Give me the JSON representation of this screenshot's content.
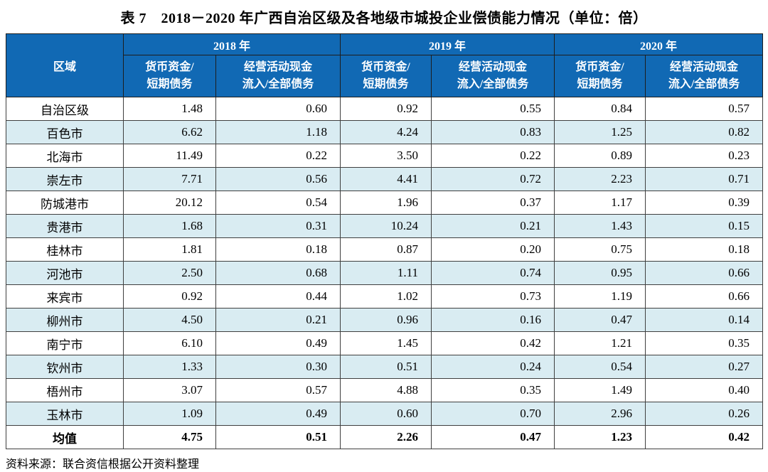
{
  "title": "表 7　2018－2020 年广西自治区级及各地级市城投企业偿债能力情况（单位：倍）",
  "source_note": "资料来源：联合资信根据公开资料整理",
  "colors": {
    "header_bg": "#1169b4",
    "stripe_bg": "#d9ecf2",
    "border": "#3f3f3f",
    "header_text": "#ffffff"
  },
  "chart_data": {
    "type": "table",
    "region_header": "区域",
    "year_groups": [
      {
        "label": "2018 年",
        "subcolumns": [
          "货币资金/\n短期债务",
          "经营活动现金\n流入/全部债务"
        ]
      },
      {
        "label": "2019 年",
        "subcolumns": [
          "货币资金/\n短期债务",
          "经营活动现金\n流入/全部债务"
        ]
      },
      {
        "label": "2020 年",
        "subcolumns": [
          "货币资金/\n短期债务",
          "经营活动现金\n流入/全部债务"
        ]
      }
    ],
    "rows": [
      {
        "region": "自治区级",
        "values": [
          "1.48",
          "0.60",
          "0.92",
          "0.55",
          "0.84",
          "0.57"
        ],
        "bold": false
      },
      {
        "region": "百色市",
        "values": [
          "6.62",
          "1.18",
          "4.24",
          "0.83",
          "1.25",
          "0.82"
        ],
        "bold": false
      },
      {
        "region": "北海市",
        "values": [
          "11.49",
          "0.22",
          "3.50",
          "0.22",
          "0.89",
          "0.23"
        ],
        "bold": false
      },
      {
        "region": "崇左市",
        "values": [
          "7.71",
          "0.56",
          "4.41",
          "0.72",
          "2.23",
          "0.71"
        ],
        "bold": false
      },
      {
        "region": "防城港市",
        "values": [
          "20.12",
          "0.54",
          "1.96",
          "0.37",
          "1.17",
          "0.39"
        ],
        "bold": false
      },
      {
        "region": "贵港市",
        "values": [
          "1.68",
          "0.31",
          "10.24",
          "0.21",
          "1.43",
          "0.15"
        ],
        "bold": false
      },
      {
        "region": "桂林市",
        "values": [
          "1.81",
          "0.18",
          "0.87",
          "0.20",
          "0.75",
          "0.18"
        ],
        "bold": false
      },
      {
        "region": "河池市",
        "values": [
          "2.50",
          "0.68",
          "1.11",
          "0.74",
          "0.95",
          "0.66"
        ],
        "bold": false
      },
      {
        "region": "来宾市",
        "values": [
          "0.92",
          "0.44",
          "1.02",
          "0.73",
          "1.19",
          "0.66"
        ],
        "bold": false
      },
      {
        "region": "柳州市",
        "values": [
          "4.50",
          "0.21",
          "0.96",
          "0.16",
          "0.47",
          "0.14"
        ],
        "bold": false
      },
      {
        "region": "南宁市",
        "values": [
          "6.10",
          "0.49",
          "1.45",
          "0.42",
          "1.21",
          "0.35"
        ],
        "bold": false
      },
      {
        "region": "钦州市",
        "values": [
          "1.33",
          "0.30",
          "0.51",
          "0.24",
          "0.54",
          "0.27"
        ],
        "bold": false
      },
      {
        "region": "梧州市",
        "values": [
          "3.07",
          "0.57",
          "4.88",
          "0.35",
          "1.49",
          "0.40"
        ],
        "bold": false
      },
      {
        "region": "玉林市",
        "values": [
          "1.09",
          "0.49",
          "0.60",
          "0.70",
          "2.96",
          "0.26"
        ],
        "bold": false
      },
      {
        "region": "均值",
        "values": [
          "4.75",
          "0.51",
          "2.26",
          "0.47",
          "1.23",
          "0.42"
        ],
        "bold": true
      }
    ]
  }
}
